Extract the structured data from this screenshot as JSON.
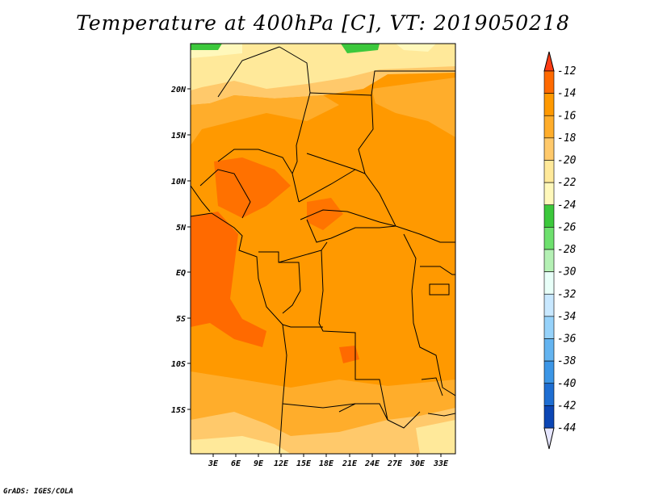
{
  "title": "Temperature at 400hPa [C], VT: 2019050218",
  "credit": "GrADS: IGES/COLA",
  "lat_labels": [
    "20N",
    "15N",
    "10N",
    "5N",
    "EQ",
    "5S",
    "10S",
    "15S"
  ],
  "lon_labels": [
    "3E",
    "6E",
    "9E",
    "12E",
    "15E",
    "18E",
    "21E",
    "24E",
    "27E",
    "30E",
    "33E"
  ],
  "colorbar": {
    "labels": [
      "-12",
      "-14",
      "-16",
      "-18",
      "-20",
      "-22",
      "-24",
      "-26",
      "-28",
      "-30",
      "-32",
      "-34",
      "-36",
      "-38",
      "-40",
      "-42",
      "-44"
    ],
    "colors": [
      "#ff6a00",
      "#ff9900",
      "#ffad2b",
      "#ffc96b",
      "#ffe99a",
      "#fff8bb",
      "#3cc83c",
      "#6ee06e",
      "#b4f0b4",
      "#e8fff8",
      "#c8e8ff",
      "#96d2fa",
      "#64b4f0",
      "#3c96e6",
      "#1e6ed2",
      "#0c46b4",
      "#0a1e78"
    ],
    "top_color": "#ff3c14",
    "bottom_color": "#e6e6ff"
  }
}
